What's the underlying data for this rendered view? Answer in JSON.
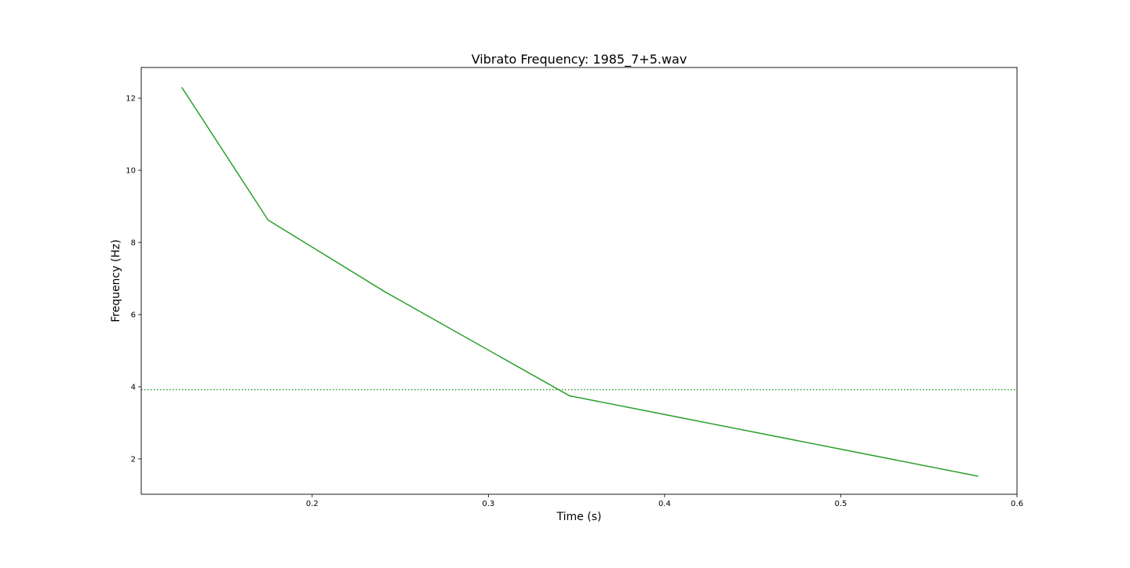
{
  "chart_data": {
    "type": "line",
    "title": "Vibrato Frequency: 1985_7+5.wav",
    "xlabel": "Time (s)",
    "ylabel": "Frequency (Hz)",
    "xlim": [
      0.103,
      0.6
    ],
    "ylim": [
      1.02,
      12.85
    ],
    "xticks": [
      0.2,
      0.3,
      0.4,
      0.5,
      0.6
    ],
    "xtick_labels": [
      "0.2",
      "0.3",
      "0.4",
      "0.5",
      "0.6"
    ],
    "yticks": [
      2,
      4,
      6,
      8,
      10,
      12
    ],
    "ytick_labels": [
      "2",
      "4",
      "6",
      "8",
      "10",
      "12"
    ],
    "grid": false,
    "series": [
      {
        "color": "#2ca02c",
        "style": "solid",
        "x": [
          0.126,
          0.175,
          0.241,
          0.346,
          0.578
        ],
        "y": [
          12.3,
          8.62,
          6.64,
          3.75,
          1.52
        ]
      }
    ],
    "reference_lines": [
      {
        "orientation": "horizontal",
        "y": 3.92,
        "color": "#2ca02c",
        "style": "dotted"
      }
    ]
  }
}
